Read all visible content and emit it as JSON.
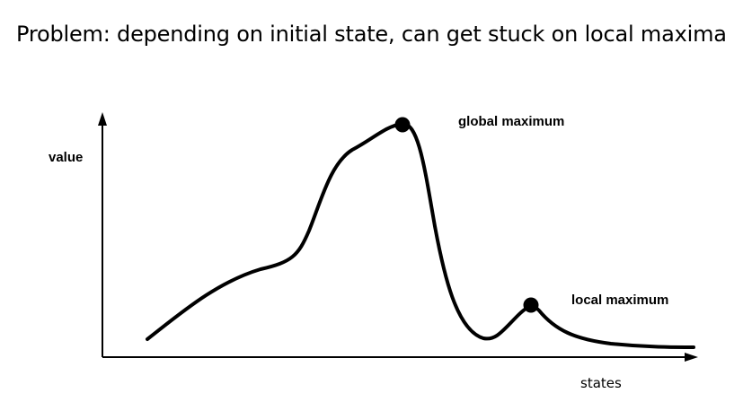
{
  "title": "Problem: depending on initial state, can get stuck on local maxima",
  "diagram": {
    "y_axis_label": "value",
    "x_axis_label": "states",
    "global_label": "global maximum",
    "local_label": "local maximum",
    "curve_color": "#000000",
    "point_color": "#000000"
  }
}
